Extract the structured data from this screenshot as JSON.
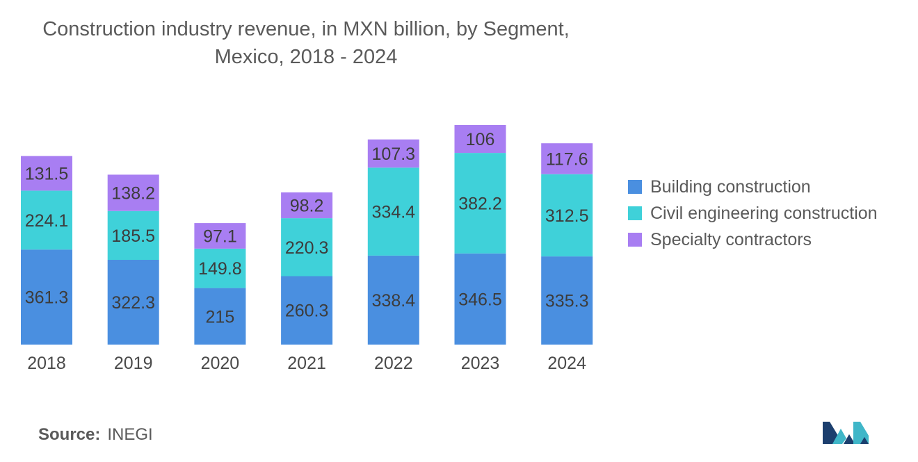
{
  "chart_data": {
    "type": "bar",
    "stacked": true,
    "title": [
      "Construction industry revenue, in MXN billion, by Segment,",
      "Mexico, 2018 - 2024"
    ],
    "xlabel": "",
    "ylabel": "",
    "ylim": [
      0,
      834.7
    ],
    "grid": false,
    "legend_position": "right",
    "categories": [
      "2018",
      "2019",
      "2020",
      "2021",
      "2022",
      "2023",
      "2024"
    ],
    "series": [
      {
        "name": "Building construction",
        "color": "#4a8fe0",
        "values": [
          361.3,
          322.3,
          215,
          260.3,
          338.4,
          346.5,
          335.3
        ]
      },
      {
        "name": "Civil engineering construction",
        "color": "#3fd1d9",
        "values": [
          224.1,
          185.5,
          149.8,
          220.3,
          334.4,
          382.2,
          312.5
        ]
      },
      {
        "name": "Specialty contractors",
        "color": "#a87ef2",
        "values": [
          131.5,
          138.2,
          97.1,
          98.2,
          107.3,
          106,
          117.6
        ]
      }
    ]
  },
  "source": {
    "label": "Source:",
    "value": "INEGI"
  },
  "logo": {
    "icon": "mordor-logo-icon",
    "colors": [
      "#1c3f6e",
      "#3fb6c8"
    ]
  }
}
